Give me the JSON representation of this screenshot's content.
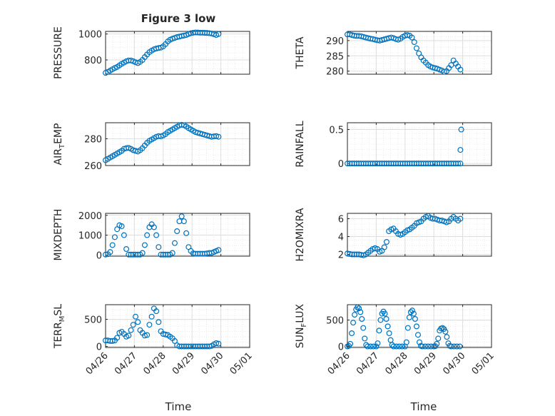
{
  "figure": {
    "title": "Figure 3 low",
    "xlabel": "Time"
  },
  "chart_data": [
    {
      "type": "scatter",
      "title": "Figure 3 low",
      "xlabel": "",
      "ylabel": "PRESSURE",
      "x_ticks": [
        "04/26",
        "04/27",
        "04/28",
        "04/29",
        "04/30",
        "05/01"
      ],
      "xlim": [
        0,
        5
      ],
      "ylim": [
        690,
        1020
      ],
      "y_ticks": [
        800,
        1000
      ],
      "grid": true,
      "x_points": [
        0,
        0.08,
        0.16,
        0.24,
        0.32,
        0.4,
        0.48,
        0.56,
        0.64,
        0.72,
        0.8,
        0.88,
        0.96,
        1.04,
        1.12,
        1.2,
        1.28,
        1.36,
        1.44,
        1.52,
        1.6,
        1.68,
        1.76,
        1.84,
        1.92,
        2,
        2.08,
        2.16,
        2.24,
        2.32,
        2.4,
        2.48,
        2.56,
        2.64,
        2.72,
        2.8,
        2.88,
        2.96,
        3.04,
        3.12,
        3.2,
        3.28,
        3.36,
        3.44,
        3.52,
        3.6,
        3.68,
        3.76,
        3.84,
        3.92
      ],
      "values": [
        700,
        708,
        718,
        728,
        738,
        746,
        758,
        770,
        780,
        790,
        796,
        796,
        790,
        782,
        776,
        785,
        800,
        822,
        842,
        860,
        872,
        882,
        888,
        892,
        895,
        905,
        922,
        942,
        956,
        964,
        970,
        976,
        980,
        984,
        988,
        992,
        1000,
        1006,
        1010,
        1012,
        1011,
        1010,
        1010,
        1009,
        1008,
        1006,
        1004,
        998,
        992,
        1000
      ]
    },
    {
      "type": "scatter",
      "xlabel": "",
      "ylabel": "THETA",
      "x_ticks": [
        "04/26",
        "04/27",
        "04/28",
        "04/29",
        "04/30",
        "05/01"
      ],
      "xlim": [
        0,
        5
      ],
      "ylim": [
        279,
        293
      ],
      "y_ticks": [
        280,
        285,
        290
      ],
      "grid": true,
      "x_points": [
        0,
        0.08,
        0.16,
        0.24,
        0.32,
        0.4,
        0.48,
        0.56,
        0.64,
        0.72,
        0.8,
        0.88,
        0.96,
        1.04,
        1.12,
        1.2,
        1.28,
        1.36,
        1.44,
        1.52,
        1.6,
        1.68,
        1.76,
        1.84,
        1.92,
        2,
        2.08,
        2.16,
        2.24,
        2.32,
        2.4,
        2.48,
        2.56,
        2.64,
        2.72,
        2.8,
        2.88,
        2.96,
        3.04,
        3.12,
        3.2,
        3.28,
        3.36,
        3.44,
        3.52,
        3.6,
        3.68,
        3.76,
        3.84,
        3.92
      ],
      "values": [
        292,
        292,
        291.8,
        291.6,
        291.5,
        291.5,
        291.4,
        291.2,
        291,
        290.8,
        290.6,
        290.5,
        290.3,
        290.1,
        290,
        290.2,
        290.4,
        290.6,
        290.8,
        291,
        290.8,
        290.5,
        290.3,
        290.6,
        291.2,
        291.6,
        291.8,
        291.6,
        291,
        289.5,
        287.5,
        285.8,
        284.5,
        283.5,
        282.8,
        282,
        281.5,
        281.2,
        281,
        280.8,
        280.5,
        280.2,
        279.8,
        280,
        281,
        282,
        283.5,
        282.5,
        281.5,
        280.5
      ]
    },
    {
      "type": "scatter",
      "xlabel": "",
      "ylabel": "AIR_TEMP",
      "x_ticks": [
        "04/26",
        "04/27",
        "04/28",
        "04/29",
        "04/30",
        "05/01"
      ],
      "xlim": [
        0,
        5
      ],
      "ylim": [
        260,
        292
      ],
      "y_ticks": [
        260,
        280
      ],
      "grid": true,
      "x_points": [
        0,
        0.08,
        0.16,
        0.24,
        0.32,
        0.4,
        0.48,
        0.56,
        0.64,
        0.72,
        0.8,
        0.88,
        0.96,
        1.04,
        1.12,
        1.2,
        1.28,
        1.36,
        1.44,
        1.52,
        1.6,
        1.68,
        1.76,
        1.84,
        1.92,
        2,
        2.08,
        2.16,
        2.24,
        2.32,
        2.4,
        2.48,
        2.56,
        2.64,
        2.72,
        2.8,
        2.88,
        2.96,
        3.04,
        3.12,
        3.2,
        3.28,
        3.36,
        3.44,
        3.52,
        3.6,
        3.68,
        3.76,
        3.84,
        3.92
      ],
      "values": [
        264,
        265,
        266,
        267,
        268,
        269,
        270,
        271,
        272.5,
        273,
        273.2,
        272.5,
        271.5,
        271,
        270.5,
        271.5,
        273,
        275,
        277,
        278.5,
        279.5,
        280.5,
        281.5,
        282,
        281.8,
        282.5,
        283.5,
        285,
        286,
        287,
        288,
        289,
        290,
        290.5,
        290.2,
        289.2,
        288,
        287,
        286,
        285,
        284.5,
        284,
        283.5,
        283,
        282.5,
        282,
        281.5,
        281.8,
        282,
        281.5
      ]
    },
    {
      "type": "scatter",
      "xlabel": "",
      "ylabel": "RAINFALL",
      "x_ticks": [
        "04/26",
        "04/27",
        "04/28",
        "04/29",
        "04/30",
        "05/01"
      ],
      "xlim": [
        0,
        5
      ],
      "ylim": [
        -0.03,
        0.6
      ],
      "y_ticks": [
        0,
        0.5
      ],
      "grid": true,
      "x_points": [
        0,
        0.08,
        0.16,
        0.24,
        0.32,
        0.4,
        0.48,
        0.56,
        0.64,
        0.72,
        0.8,
        0.88,
        0.96,
        1.04,
        1.12,
        1.2,
        1.28,
        1.36,
        1.44,
        1.52,
        1.6,
        1.68,
        1.76,
        1.84,
        1.92,
        2,
        2.08,
        2.16,
        2.24,
        2.32,
        2.4,
        2.48,
        2.56,
        2.64,
        2.72,
        2.8,
        2.88,
        2.96,
        3.04,
        3.12,
        3.2,
        3.28,
        3.36,
        3.44,
        3.52,
        3.6,
        3.68,
        3.76,
        3.84,
        3.92,
        3.92,
        3.95
      ],
      "values": [
        0,
        0,
        0,
        0,
        0,
        0,
        0,
        0,
        0,
        0,
        0,
        0,
        0,
        0,
        0,
        0,
        0,
        0,
        0,
        0,
        0,
        0,
        0,
        0,
        0,
        0,
        0,
        0,
        0,
        0,
        0,
        0,
        0,
        0,
        0,
        0,
        0,
        0,
        0,
        0,
        0,
        0,
        0,
        0,
        0,
        0,
        0,
        0,
        0,
        0,
        0.2,
        0.5
      ]
    },
    {
      "type": "scatter",
      "xlabel": "",
      "ylabel": "MIXDEPTH",
      "x_ticks": [
        "04/26",
        "04/27",
        "04/28",
        "04/29",
        "04/30",
        "05/01"
      ],
      "xlim": [
        0,
        5
      ],
      "ylim": [
        -60,
        2100
      ],
      "y_ticks": [
        0,
        1000,
        2000
      ],
      "grid": true,
      "x_points": [
        0,
        0.08,
        0.16,
        0.24,
        0.32,
        0.4,
        0.48,
        0.56,
        0.64,
        0.72,
        0.8,
        0.88,
        0.96,
        1.04,
        1.12,
        1.2,
        1.28,
        1.36,
        1.44,
        1.52,
        1.6,
        1.68,
        1.76,
        1.84,
        1.92,
        2,
        2.08,
        2.16,
        2.24,
        2.32,
        2.4,
        2.48,
        2.56,
        2.64,
        2.72,
        2.8,
        2.88,
        2.96,
        3.04,
        3.12,
        3.2,
        3.28,
        3.36,
        3.44,
        3.52,
        3.6,
        3.68,
        3.76,
        3.84,
        3.92
      ],
      "values": [
        20,
        40,
        150,
        500,
        900,
        1300,
        1500,
        1450,
        1000,
        300,
        20,
        20,
        20,
        20,
        20,
        20,
        100,
        500,
        1000,
        1400,
        1550,
        1400,
        1000,
        400,
        20,
        20,
        20,
        20,
        20,
        100,
        600,
        1200,
        1700,
        1950,
        1700,
        1100,
        400,
        200,
        80,
        60,
        60,
        60,
        60,
        60,
        80,
        100,
        100,
        150,
        200,
        250
      ]
    },
    {
      "type": "scatter",
      "xlabel": "",
      "ylabel": "H2OMIXRA",
      "x_ticks": [
        "04/26",
        "04/27",
        "04/28",
        "04/29",
        "04/30",
        "05/01"
      ],
      "xlim": [
        0,
        5
      ],
      "ylim": [
        1.8,
        6.6
      ],
      "y_ticks": [
        2,
        4,
        6
      ],
      "grid": true,
      "x_points": [
        0,
        0.08,
        0.16,
        0.24,
        0.32,
        0.4,
        0.48,
        0.56,
        0.64,
        0.72,
        0.8,
        0.88,
        0.96,
        1.04,
        1.12,
        1.2,
        1.28,
        1.36,
        1.44,
        1.52,
        1.6,
        1.68,
        1.76,
        1.84,
        1.92,
        2,
        2.08,
        2.16,
        2.24,
        2.32,
        2.4,
        2.48,
        2.56,
        2.64,
        2.72,
        2.8,
        2.88,
        2.96,
        3.04,
        3.12,
        3.2,
        3.28,
        3.36,
        3.44,
        3.52,
        3.6,
        3.68,
        3.76,
        3.84,
        3.92
      ],
      "values": [
        2.1,
        2.05,
        2,
        2,
        2,
        2,
        1.95,
        1.9,
        2,
        2.2,
        2.4,
        2.6,
        2.7,
        2.6,
        2.3,
        2.4,
        2.8,
        3.4,
        4.6,
        4.8,
        4.9,
        4.6,
        4.3,
        4.2,
        4.3,
        4.5,
        4.7,
        4.8,
        5,
        5.2,
        5.5,
        5.6,
        5.7,
        6,
        6.2,
        6.3,
        6.1,
        6,
        6,
        5.9,
        5.8,
        5.8,
        5.7,
        5.6,
        5.7,
        6,
        6.2,
        6.0,
        5.8,
        6.0
      ]
    },
    {
      "type": "scatter",
      "xlabel": "",
      "ylabel": "TERR_MSL",
      "x_ticks": [
        "04/26",
        "04/27",
        "04/28",
        "04/29",
        "04/30",
        "05/01"
      ],
      "xlim": [
        0,
        5
      ],
      "ylim": [
        -20,
        770
      ],
      "y_ticks": [
        0,
        500
      ],
      "grid": true,
      "x_points": [
        0,
        0.08,
        0.16,
        0.24,
        0.32,
        0.4,
        0.48,
        0.56,
        0.64,
        0.72,
        0.8,
        0.88,
        0.96,
        1.04,
        1.12,
        1.2,
        1.28,
        1.36,
        1.44,
        1.52,
        1.6,
        1.68,
        1.76,
        1.84,
        1.92,
        2,
        2.08,
        2.16,
        2.24,
        2.32,
        2.4,
        2.48,
        2.56,
        2.64,
        2.72,
        2.8,
        2.88,
        2.96,
        3.04,
        3.12,
        3.2,
        3.28,
        3.36,
        3.44,
        3.52,
        3.6,
        3.68,
        3.76,
        3.84,
        3.92
      ],
      "values": [
        110,
        110,
        100,
        100,
        110,
        160,
        250,
        270,
        230,
        180,
        200,
        300,
        400,
        550,
        450,
        300,
        250,
        200,
        210,
        400,
        550,
        700,
        650,
        450,
        280,
        230,
        220,
        210,
        180,
        150,
        100,
        20,
        0,
        0,
        0,
        0,
        0,
        0,
        0,
        0,
        0,
        0,
        0,
        0,
        0,
        0,
        10,
        40,
        60,
        50
      ]
    },
    {
      "type": "scatter",
      "xlabel": "",
      "ylabel": "SUN_FLUX",
      "x_ticks": [
        "04/26",
        "04/27",
        "04/28",
        "04/29",
        "04/30",
        "05/01"
      ],
      "xlim": [
        0,
        5
      ],
      "ylim": [
        -20,
        790
      ],
      "y_ticks": [
        0,
        500
      ],
      "grid": true,
      "x_points": [
        0,
        0.05,
        0.1,
        0.15,
        0.2,
        0.25,
        0.3,
        0.35,
        0.4,
        0.45,
        0.5,
        0.55,
        0.6,
        0.65,
        0.7,
        0.8,
        0.9,
        1,
        1.05,
        1.1,
        1.15,
        1.2,
        1.25,
        1.3,
        1.35,
        1.4,
        1.45,
        1.5,
        1.55,
        1.6,
        1.7,
        1.8,
        1.9,
        2,
        2.05,
        2.1,
        2.15,
        2.2,
        2.25,
        2.3,
        2.35,
        2.4,
        2.45,
        2.5,
        2.55,
        2.6,
        2.7,
        2.8,
        2.9,
        3,
        3.05,
        3.1,
        3.15,
        3.2,
        3.25,
        3.3,
        3.35,
        3.4,
        3.45,
        3.5,
        3.55,
        3.6,
        3.7,
        3.8,
        3.9
      ],
      "values": [
        0,
        10,
        50,
        250,
        450,
        600,
        700,
        740,
        720,
        650,
        520,
        350,
        150,
        30,
        0,
        0,
        0,
        0,
        60,
        300,
        500,
        620,
        660,
        620,
        520,
        380,
        250,
        120,
        30,
        0,
        0,
        0,
        0,
        0,
        80,
        350,
        550,
        650,
        680,
        620,
        520,
        380,
        220,
        80,
        10,
        0,
        0,
        0,
        0,
        0,
        5,
        50,
        150,
        300,
        340,
        350,
        330,
        280,
        180,
        60,
        10,
        0,
        0,
        0,
        0
      ]
    }
  ]
}
